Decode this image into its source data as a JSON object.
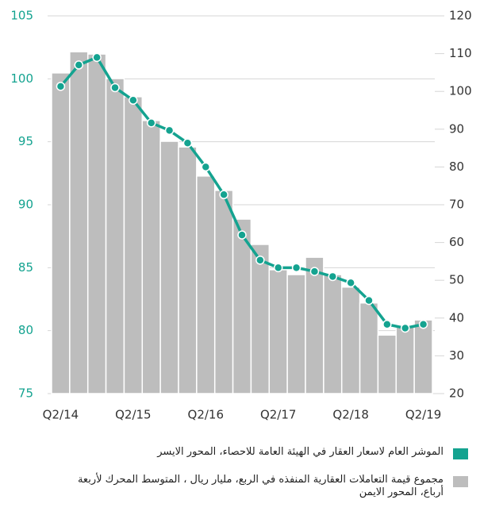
{
  "chart_data": {
    "type": "bar-line",
    "categories": [
      "Q2/14",
      null,
      null,
      null,
      "Q2/15",
      null,
      null,
      null,
      "Q2/16",
      null,
      null,
      null,
      "Q2/17",
      null,
      null,
      null,
      "Q2/18",
      null,
      null,
      null,
      "Q2/19"
    ],
    "series": [
      {
        "name": "الموشر العام لاسعار العقار في الهيئة العامة للاحصاء، المحور الايسر",
        "type": "line",
        "color": "#14a390",
        "axis": "y",
        "values": [
          99.4,
          101.1,
          101.7,
          99.3,
          98.3,
          96.5,
          95.9,
          94.9,
          93.0,
          90.8,
          87.6,
          85.6,
          85.0,
          85.0,
          84.7,
          84.3,
          83.8,
          82.4,
          80.5,
          80.2,
          80.5
        ]
      },
      {
        "name": "مجموع قيمة التعاملات العقارية المنفذه في الربع، مليار ريال ، المتوسط المحرك لأربعة أرباع، المحور الايمن",
        "type": "bar",
        "color": "#bdbdbd",
        "axis": "y2",
        "values": [
          104.9,
          110.5,
          109.9,
          103.4,
          98.6,
          92.3,
          86.8,
          85.3,
          77.6,
          73.8,
          66.2,
          59.5,
          52.8,
          51.5,
          56.1,
          51.5,
          48.2,
          44.0,
          35.5,
          38.1,
          39.5
        ]
      }
    ],
    "ylim": [
      75,
      105
    ],
    "yticks": [
      75,
      80,
      85,
      90,
      95,
      100,
      105
    ],
    "y2lim": [
      20,
      120
    ],
    "y2ticks": [
      20,
      30,
      40,
      50,
      60,
      70,
      80,
      90,
      100,
      110,
      120
    ],
    "grid": true
  }
}
